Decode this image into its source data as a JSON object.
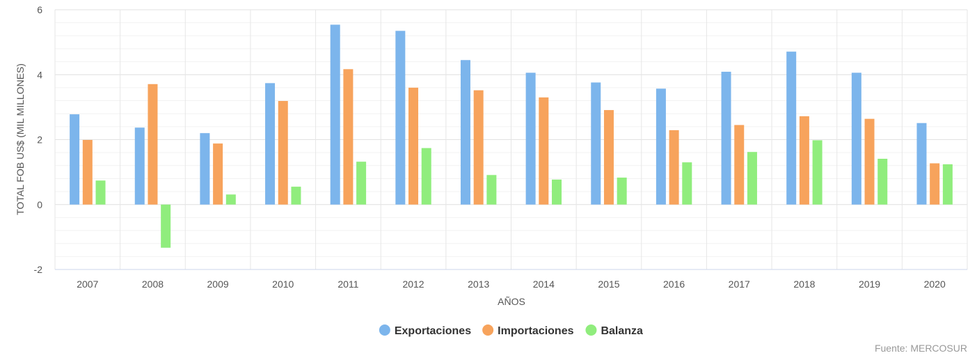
{
  "chart_data": {
    "type": "bar",
    "xlabel": "AÑOS",
    "ylabel": "TOTAL FOB US$ (MIL MILLONES)",
    "ylim": [
      -2,
      6
    ],
    "yticks": [
      -2,
      0,
      2,
      4,
      6
    ],
    "grid": true,
    "legend_position": "bottom-center",
    "categories": [
      "2007",
      "2008",
      "2009",
      "2010",
      "2011",
      "2012",
      "2013",
      "2014",
      "2015",
      "2016",
      "2017",
      "2018",
      "2019",
      "2020"
    ],
    "series": [
      {
        "name": "Exportaciones",
        "color": "#7cb5ec",
        "values": [
          2.78,
          2.37,
          2.2,
          3.74,
          5.54,
          5.35,
          4.45,
          4.06,
          3.76,
          3.57,
          4.09,
          4.71,
          4.06,
          2.51
        ]
      },
      {
        "name": "Importaciones",
        "color": "#f7a35c",
        "values": [
          1.99,
          3.71,
          1.88,
          3.19,
          4.17,
          3.6,
          3.52,
          3.3,
          2.91,
          2.29,
          2.45,
          2.72,
          2.64,
          1.27
        ]
      },
      {
        "name": "Balanza",
        "color": "#90ed7d",
        "values": [
          0.74,
          -1.33,
          0.31,
          0.55,
          1.32,
          1.74,
          0.91,
          0.77,
          0.83,
          1.3,
          1.62,
          1.98,
          1.41,
          1.24
        ]
      }
    ],
    "source": "Fuente: MERCOSUR"
  }
}
